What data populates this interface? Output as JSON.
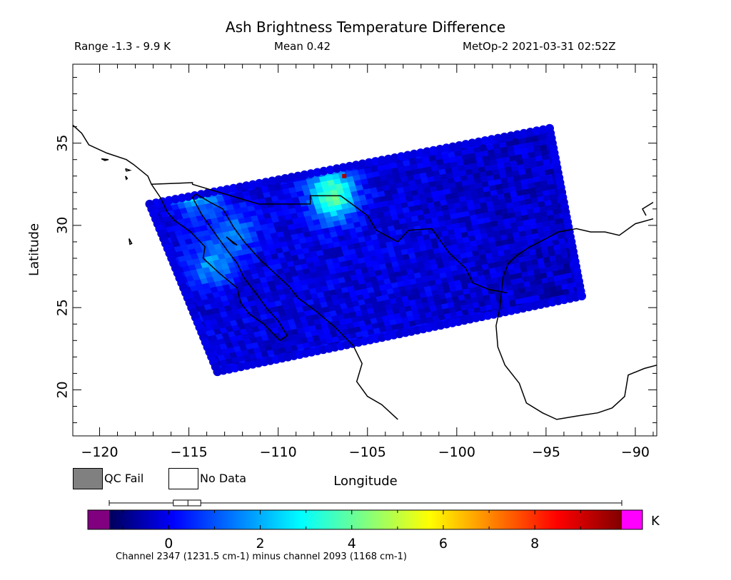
{
  "title": "Ash Brightness Temperature Difference",
  "range_label": "Range -1.3 - 9.9 K",
  "mean_label": "Mean 0.42",
  "satellite_label": "MetOp-2 2021-03-31 02:52Z",
  "x_axis_label": "Longitude",
  "y_axis_label": "Latitude",
  "legend": {
    "qc_fail_label": "QC Fail",
    "qc_fail_color": "#808080",
    "no_data_label": "No Data",
    "no_data_color": "#ffffff"
  },
  "colorbar": {
    "unit": "K",
    "ticks": [
      "0",
      "2",
      "4",
      "6",
      "8"
    ],
    "underflow_color": "#800080",
    "overflow_color": "#ff00ff",
    "stops": [
      "#00005a",
      "#0000ff",
      "#0080ff",
      "#00ffff",
      "#80ff80",
      "#ffff00",
      "#ff8000",
      "#ff0000",
      "#800000"
    ]
  },
  "footnote": "Channel 2347 (1231.5 cm-1) minus channel 2093 (1168 cm-1)",
  "chart_data": {
    "type": "heatmap",
    "title": "Ash Brightness Temperature Difference",
    "xlabel": "Longitude",
    "ylabel": "Latitude",
    "xlim": [
      -121.5,
      -88.8
    ],
    "ylim": [
      17.2,
      39.8
    ],
    "x_ticks": [
      -120,
      -115,
      -110,
      -105,
      -100,
      -95,
      -90
    ],
    "x_tick_labels": [
      "−120",
      "−115",
      "−110",
      "−105",
      "−100",
      "−95",
      "−90"
    ],
    "y_ticks": [
      20,
      25,
      30,
      35
    ],
    "y_tick_labels": [
      "20",
      "25",
      "30",
      "35"
    ],
    "value_range": [
      -1.3,
      9.9
    ],
    "mean": 0.42,
    "colorbar_range": [
      -1.3,
      9.9
    ],
    "colorbar_ticks": [
      0,
      2,
      4,
      6,
      8
    ],
    "swath_corners": [
      [
        -117.2,
        31.3
      ],
      [
        -94.8,
        35.9
      ],
      [
        -93.0,
        25.7
      ],
      [
        -113.4,
        21.1
      ]
    ],
    "hotspots": [
      {
        "lon": -114.6,
        "lat": 32.0,
        "value": 3.0
      },
      {
        "lon": -106.9,
        "lat": 31.4,
        "value": 3.2
      },
      {
        "lon": -107.0,
        "lat": 32.6,
        "value": 2.4
      },
      {
        "lon": -112.5,
        "lat": 29.5,
        "value": 2.0
      },
      {
        "lon": -113.8,
        "lat": 27.5,
        "value": 2.2
      },
      {
        "lon": -106.3,
        "lat": 33.0,
        "value": 9.5
      }
    ],
    "grid": false
  }
}
